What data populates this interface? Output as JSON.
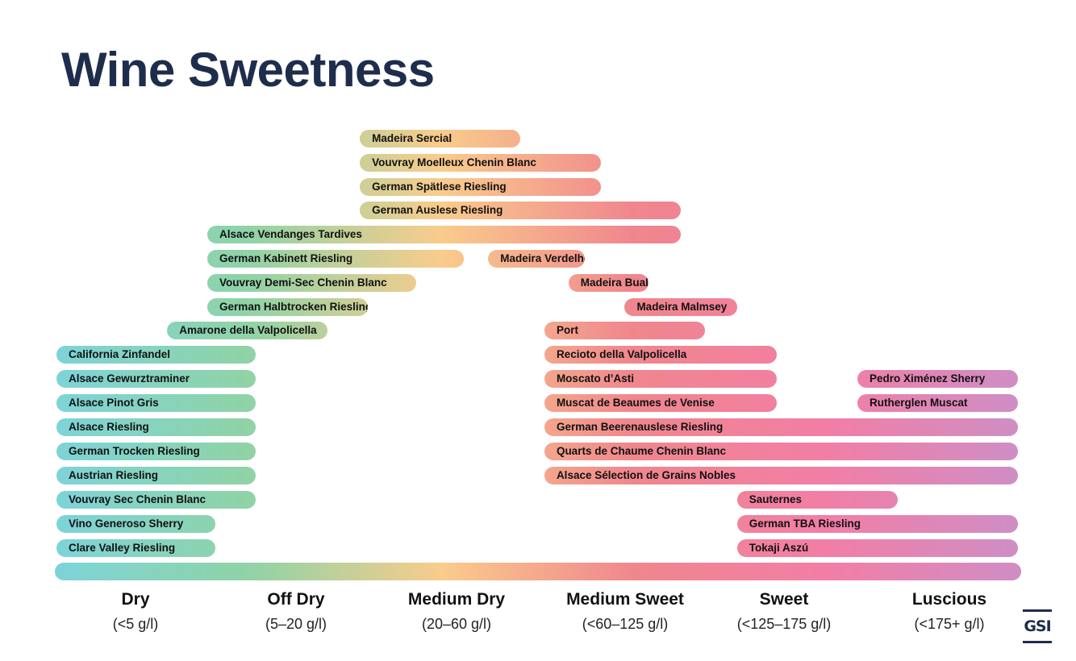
{
  "title": "Wine Sweetness",
  "logo_text": "GSI",
  "gradient_colors": [
    "#7dd3d8",
    "#8fd3a6",
    "#f9cc8c",
    "#f0868d",
    "#f27ea6",
    "#cf8ec4"
  ],
  "chart_data": {
    "type": "range-bar",
    "title": "Wine Sweetness",
    "unit": "g/l",
    "categories": [
      {
        "name": "Dry",
        "range": "(<5 g/l)"
      },
      {
        "name": "Off Dry",
        "range": "(5–20 g/l)"
      },
      {
        "name": "Medium Dry",
        "range": "(20–60 g/l)"
      },
      {
        "name": "Medium Sweet",
        "range": "(<60–125 g/l)"
      },
      {
        "name": "Sweet",
        "range": "(<125–175 g/l)"
      },
      {
        "name": "Luscious",
        "range": "(<175+ g/l)"
      }
    ],
    "wines": [
      {
        "name": "Madeira Sercial",
        "start": 1.9,
        "end": 2.9
      },
      {
        "name": "Vouvray Moelleux Chenin Blanc",
        "start": 1.9,
        "end": 3.4
      },
      {
        "name": "German Spätlese Riesling",
        "start": 1.9,
        "end": 3.4
      },
      {
        "name": "German Auslese Riesling",
        "start": 1.9,
        "end": 3.9
      },
      {
        "name": "Alsace Vendanges Tardives",
        "start": 0.95,
        "end": 3.9
      },
      {
        "name": "German Kabinett Riesling",
        "start": 0.95,
        "end": 2.55
      },
      {
        "name": "Madeira Verdelho",
        "start": 2.7,
        "end": 3.3
      },
      {
        "name": "Vouvray Demi-Sec Chenin Blanc",
        "start": 0.95,
        "end": 2.25
      },
      {
        "name": "Madeira Bual",
        "start": 3.2,
        "end": 3.7
      },
      {
        "name": "German Halbtrocken Riesling",
        "start": 0.95,
        "end": 1.95
      },
      {
        "name": "Madeira Malmsey",
        "start": 3.55,
        "end": 4.25
      },
      {
        "name": "Amarone della Valpolicella",
        "start": 0.7,
        "end": 1.7
      },
      {
        "name": "Port",
        "start": 3.05,
        "end": 4.05
      },
      {
        "name": "California Zinfandel",
        "start": 0.0,
        "end": 1.25
      },
      {
        "name": "Recioto della Valpolicella",
        "start": 3.05,
        "end": 4.5
      },
      {
        "name": "Alsace Gewurztraminer",
        "start": 0.0,
        "end": 1.25
      },
      {
        "name": "Moscato d’Asti",
        "start": 3.05,
        "end": 4.5
      },
      {
        "name": "Pedro Ximénez Sherry",
        "start": 5.0,
        "end": 6.0
      },
      {
        "name": "Alsace Pinot Gris",
        "start": 0.0,
        "end": 1.25
      },
      {
        "name": "Muscat de Beaumes de Venise",
        "start": 3.05,
        "end": 4.5
      },
      {
        "name": "Rutherglen Muscat",
        "start": 5.0,
        "end": 6.0
      },
      {
        "name": "Alsace Riesling",
        "start": 0.0,
        "end": 1.25
      },
      {
        "name": "German Beerenauslese Riesling",
        "start": 3.05,
        "end": 6.0
      },
      {
        "name": "German Trocken Riesling",
        "start": 0.0,
        "end": 1.25
      },
      {
        "name": "Quarts de Chaume Chenin Blanc",
        "start": 3.05,
        "end": 6.0
      },
      {
        "name": "Austrian Riesling",
        "start": 0.0,
        "end": 1.25
      },
      {
        "name": "Alsace Sélection de Grains Nobles",
        "start": 3.05,
        "end": 6.0
      },
      {
        "name": "Vouvray Sec Chenin Blanc",
        "start": 0.0,
        "end": 1.25
      },
      {
        "name": "Sauternes",
        "start": 4.25,
        "end": 5.25
      },
      {
        "name": "Vino Generoso Sherry",
        "start": 0.0,
        "end": 1.0
      },
      {
        "name": "German TBA Riesling",
        "start": 4.25,
        "end": 6.0
      },
      {
        "name": "Clare Valley Riesling",
        "start": 0.0,
        "end": 1.0
      },
      {
        "name": "Tokaji Aszú",
        "start": 4.25,
        "end": 6.0
      }
    ],
    "xlim": [
      0,
      6
    ]
  }
}
